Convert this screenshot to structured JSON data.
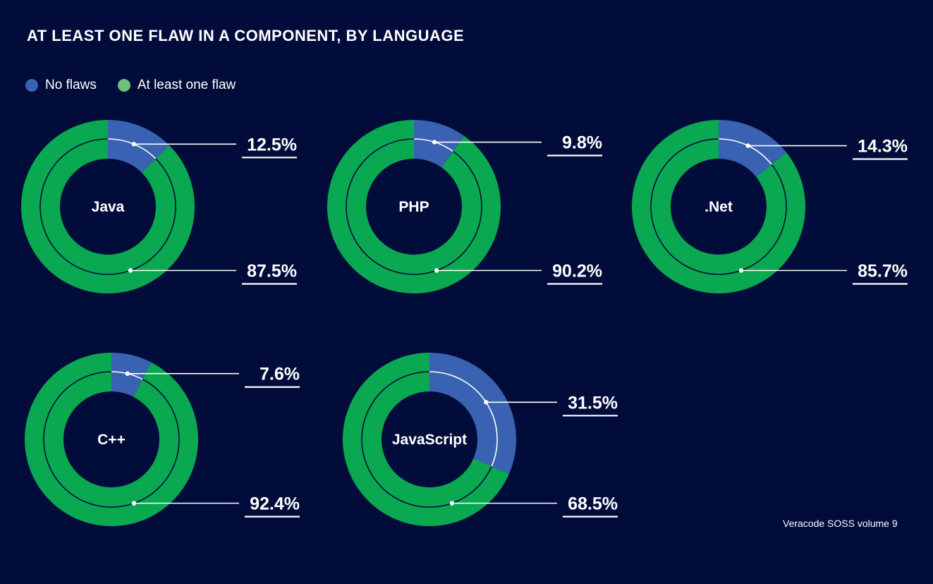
{
  "title": "AT LEAST ONE FLAW IN A COMPONENT, BY LANGUAGE",
  "legend": [
    {
      "label": "No flaws",
      "color": "#3a62b2"
    },
    {
      "label": "At least one flaw",
      "color": "#6cc17a"
    }
  ],
  "source": "Veracode SOSS volume 9",
  "colors": {
    "background": "#020c3a",
    "no_flaws": "#3a62b2",
    "at_least_one_flaw": "#0aa850",
    "lines": "#ffffff"
  },
  "chart_data": [
    {
      "type": "pie",
      "language": "Java",
      "categories": [
        "No flaws",
        "At least one flaw"
      ],
      "values": [
        12.5,
        87.5
      ],
      "labels": [
        "12.5%",
        "87.5%"
      ]
    },
    {
      "type": "pie",
      "language": "PHP",
      "categories": [
        "No flaws",
        "At least one flaw"
      ],
      "values": [
        9.8,
        90.2
      ],
      "labels": [
        "9.8%",
        "90.2%"
      ]
    },
    {
      "type": "pie",
      "language": ".Net",
      "categories": [
        "No flaws",
        "At least one flaw"
      ],
      "values": [
        14.3,
        85.7
      ],
      "labels": [
        "14.3%",
        "85.7%"
      ]
    },
    {
      "type": "pie",
      "language": "C++",
      "categories": [
        "No flaws",
        "At least one flaw"
      ],
      "values": [
        7.6,
        92.4
      ],
      "labels": [
        "7.6%",
        "92.4%"
      ]
    },
    {
      "type": "pie",
      "language": "JavaScript",
      "categories": [
        "No flaws",
        "At least one flaw"
      ],
      "values": [
        31.5,
        68.5
      ],
      "labels": [
        "31.5%",
        "68.5%"
      ]
    }
  ]
}
